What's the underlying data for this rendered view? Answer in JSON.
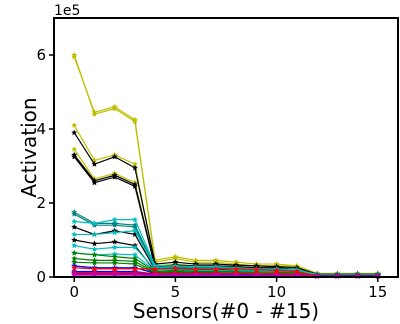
{
  "chart_data": {
    "type": "line",
    "xlabel": "Sensors(#0 - #15)",
    "ylabel": "Activation",
    "y_offset_text": "1e5",
    "xlim": [
      -1,
      16
    ],
    "ylim": [
      0,
      7
    ],
    "x_ticks": [
      0,
      5,
      10,
      15
    ],
    "y_ticks": [
      0,
      2,
      4,
      6
    ],
    "grid": false,
    "legend": "none",
    "x": [
      0,
      1,
      2,
      3,
      4,
      5,
      6,
      7,
      8,
      9,
      10,
      11,
      12,
      13,
      14,
      15
    ],
    "series": [
      {
        "color": "#bfbf00",
        "marker": "*",
        "values": [
          6.0,
          4.4,
          4.55,
          4.2,
          0.45,
          0.55,
          0.45,
          0.45,
          0.4,
          0.35,
          0.35,
          0.3,
          0.1,
          0.1,
          0.1,
          0.1
        ]
      },
      {
        "color": "#bfbf00",
        "marker": "*",
        "values": [
          5.95,
          4.45,
          4.6,
          4.25,
          0.4,
          0.5,
          0.4,
          0.4,
          0.35,
          0.3,
          0.3,
          0.28,
          0.08,
          0.08,
          0.08,
          0.08
        ]
      },
      {
        "color": "#bfbf00",
        "marker": "*",
        "values": [
          4.1,
          3.15,
          3.3,
          3.05,
          0.3,
          0.35,
          0.3,
          0.3,
          0.28,
          0.25,
          0.25,
          0.2,
          0.08,
          0.08,
          0.08,
          0.08
        ]
      },
      {
        "color": "#bfbf00",
        "marker": "*",
        "values": [
          3.45,
          2.65,
          2.8,
          2.55,
          0.25,
          0.3,
          0.28,
          0.28,
          0.25,
          0.22,
          0.22,
          0.18,
          0.07,
          0.07,
          0.07,
          0.07
        ]
      },
      {
        "color": "#000000",
        "marker": "*",
        "values": [
          3.9,
          3.05,
          3.25,
          2.95,
          0.35,
          0.4,
          0.35,
          0.35,
          0.32,
          0.3,
          0.28,
          0.25,
          0.08,
          0.08,
          0.08,
          0.08
        ]
      },
      {
        "color": "#000000",
        "marker": "*",
        "values": [
          3.3,
          2.6,
          2.75,
          2.5,
          0.28,
          0.32,
          0.3,
          0.3,
          0.28,
          0.25,
          0.25,
          0.2,
          0.07,
          0.07,
          0.07,
          0.07
        ]
      },
      {
        "color": "#000000",
        "marker": "*",
        "values": [
          3.25,
          2.55,
          2.7,
          2.45,
          0.25,
          0.3,
          0.28,
          0.28,
          0.25,
          0.22,
          0.22,
          0.18,
          0.07,
          0.07,
          0.07,
          0.07
        ]
      },
      {
        "color": "#000000",
        "marker": "*",
        "values": [
          1.35,
          1.15,
          1.25,
          1.15,
          0.2,
          0.22,
          0.2,
          0.2,
          0.18,
          0.17,
          0.17,
          0.15,
          0.06,
          0.06,
          0.06,
          0.06
        ]
      },
      {
        "color": "#000000",
        "marker": "*",
        "values": [
          1.0,
          0.9,
          0.95,
          0.85,
          0.15,
          0.18,
          0.16,
          0.16,
          0.15,
          0.14,
          0.14,
          0.12,
          0.05,
          0.05,
          0.05,
          0.05
        ]
      },
      {
        "color": "#008080",
        "marker": "*",
        "values": [
          1.75,
          1.45,
          1.45,
          1.4,
          0.25,
          0.28,
          0.25,
          0.25,
          0.22,
          0.2,
          0.2,
          0.18,
          0.06,
          0.06,
          0.06,
          0.06
        ]
      },
      {
        "color": "#008080",
        "marker": "*",
        "values": [
          1.7,
          1.4,
          1.4,
          1.35,
          0.22,
          0.25,
          0.23,
          0.23,
          0.2,
          0.18,
          0.18,
          0.16,
          0.06,
          0.06,
          0.06,
          0.06
        ]
      },
      {
        "color": "#00bfbf",
        "marker": "*",
        "values": [
          1.5,
          1.45,
          1.55,
          1.55,
          0.3,
          0.3,
          0.28,
          0.28,
          0.25,
          0.22,
          0.22,
          0.2,
          0.07,
          0.07,
          0.07,
          0.07
        ]
      },
      {
        "color": "#00bfbf",
        "marker": "*",
        "values": [
          1.15,
          1.15,
          1.2,
          1.25,
          0.25,
          0.25,
          0.23,
          0.23,
          0.2,
          0.18,
          0.18,
          0.16,
          0.06,
          0.06,
          0.06,
          0.06
        ]
      },
      {
        "color": "#00bfbf",
        "marker": "*",
        "values": [
          0.85,
          0.75,
          0.8,
          0.8,
          0.2,
          0.2,
          0.18,
          0.18,
          0.16,
          0.15,
          0.15,
          0.13,
          0.05,
          0.05,
          0.05,
          0.05
        ]
      },
      {
        "color": "#00bfbf",
        "marker": "*",
        "values": [
          0.65,
          0.6,
          0.62,
          0.6,
          0.16,
          0.16,
          0.15,
          0.15,
          0.14,
          0.13,
          0.13,
          0.11,
          0.05,
          0.05,
          0.05,
          0.05
        ]
      },
      {
        "color": "#008000",
        "marker": "*",
        "values": [
          0.65,
          0.6,
          0.55,
          0.5,
          0.15,
          0.17,
          0.15,
          0.15,
          0.14,
          0.13,
          0.13,
          0.11,
          0.05,
          0.05,
          0.05,
          0.05
        ]
      },
      {
        "color": "#008000",
        "marker": "*",
        "values": [
          0.5,
          0.45,
          0.45,
          0.42,
          0.12,
          0.14,
          0.12,
          0.12,
          0.11,
          0.1,
          0.1,
          0.09,
          0.04,
          0.04,
          0.04,
          0.04
        ]
      },
      {
        "color": "#008000",
        "marker": "*",
        "values": [
          0.4,
          0.38,
          0.38,
          0.35,
          0.1,
          0.12,
          0.1,
          0.1,
          0.1,
          0.09,
          0.09,
          0.08,
          0.04,
          0.04,
          0.04,
          0.04
        ]
      },
      {
        "color": "#0000ff",
        "marker": "*",
        "values": [
          0.3,
          0.25,
          0.25,
          0.25,
          0.1,
          0.1,
          0.1,
          0.1,
          0.09,
          0.08,
          0.08,
          0.07,
          0.03,
          0.03,
          0.03,
          0.03
        ]
      },
      {
        "color": "#0000ff",
        "marker": "*",
        "values": [
          0.15,
          0.15,
          0.15,
          0.15,
          0.08,
          0.08,
          0.08,
          0.08,
          0.07,
          0.07,
          0.07,
          0.06,
          0.03,
          0.03,
          0.03,
          0.03
        ]
      },
      {
        "color": "#0000ff",
        "marker": "*",
        "values": [
          0.1,
          0.1,
          0.1,
          0.1,
          0.07,
          0.07,
          0.07,
          0.07,
          0.06,
          0.06,
          0.06,
          0.05,
          0.04,
          0.04,
          0.04,
          0.04
        ]
      },
      {
        "color": "#ff0000",
        "marker": "*",
        "values": [
          0.25,
          0.22,
          0.22,
          0.22,
          0.22,
          0.24,
          0.22,
          0.22,
          0.22,
          0.2,
          0.18,
          0.15,
          0.03,
          0.03,
          0.03,
          0.03
        ]
      },
      {
        "color": "#ff0000",
        "marker": "*",
        "values": [
          0.12,
          0.12,
          0.12,
          0.12,
          0.1,
          0.1,
          0.1,
          0.1,
          0.1,
          0.09,
          0.09,
          0.08,
          0.02,
          0.02,
          0.02,
          0.02
        ]
      },
      {
        "color": "#bf00bf",
        "marker": "*",
        "values": [
          0.08,
          0.08,
          0.08,
          0.08,
          0.06,
          0.06,
          0.06,
          0.06,
          0.05,
          0.05,
          0.05,
          0.05,
          0.02,
          0.02,
          0.02,
          0.02
        ]
      },
      {
        "color": "#bf00bf",
        "marker": "*",
        "values": [
          0.05,
          0.05,
          0.05,
          0.05,
          0.04,
          0.04,
          0.04,
          0.04,
          0.04,
          0.04,
          0.04,
          0.04,
          0.02,
          0.02,
          0.02,
          0.02
        ]
      }
    ]
  }
}
